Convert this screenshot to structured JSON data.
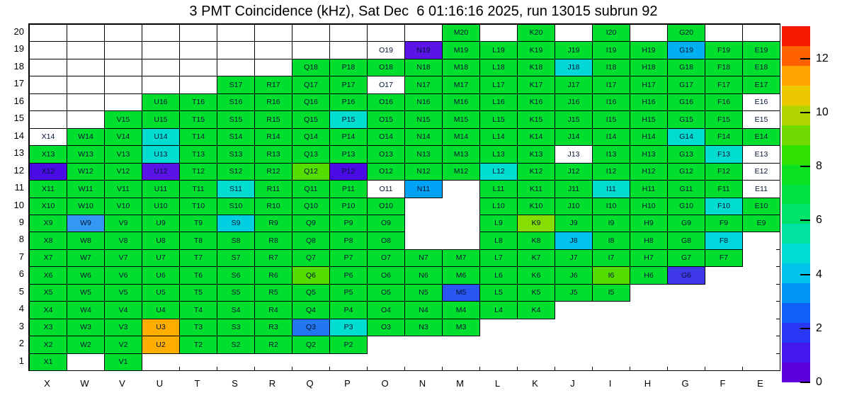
{
  "title": "3 PMT Coincidence (kHz), Sat Dec  6 01:16:16 2025, run 13015 subrun 92",
  "chart_data": {
    "type": "heatmap",
    "value_unit": "kHz",
    "columns": [
      "X",
      "W",
      "V",
      "U",
      "T",
      "S",
      "R",
      "Q",
      "P",
      "O",
      "N",
      "M",
      "L",
      "K",
      "J",
      "I",
      "H",
      "G",
      "F",
      "E"
    ],
    "rows_top_to_bottom": [
      20,
      19,
      18,
      17,
      16,
      15,
      14,
      13,
      12,
      11,
      10,
      9,
      8,
      7,
      6,
      5,
      4,
      3,
      2,
      1
    ],
    "grid": {
      "text_color": "#001433",
      "bordered_empty_rows_from": 15,
      "default": {
        "value": 6.5,
        "color": "#00df2e"
      },
      "row_cells": {
        "20": [
          "M",
          "K",
          "I",
          "G"
        ],
        "19": [
          "O",
          "N",
          "M",
          "L",
          "K",
          "J",
          "I",
          "H",
          "G",
          "F",
          "E"
        ],
        "18": [
          "Q",
          "P",
          "O",
          "N",
          "M",
          "L",
          "K",
          "J",
          "I",
          "H",
          "G",
          "F",
          "E"
        ],
        "17": [
          "S",
          "R",
          "Q",
          "P",
          "O",
          "N",
          "M",
          "L",
          "K",
          "J",
          "I",
          "H",
          "G",
          "F",
          "E"
        ],
        "16": [
          "U",
          "T",
          "S",
          "R",
          "Q",
          "P",
          "O",
          "N",
          "M",
          "L",
          "K",
          "J",
          "I",
          "H",
          "G",
          "F",
          "E"
        ],
        "15": [
          "V",
          "U",
          "T",
          "S",
          "R",
          "Q",
          "P",
          "O",
          "N",
          "M",
          "L",
          "K",
          "J",
          "I",
          "H",
          "G",
          "F",
          "E"
        ],
        "14": [
          "X",
          "W",
          "V",
          "U",
          "T",
          "S",
          "R",
          "Q",
          "P",
          "O",
          "N",
          "M",
          "L",
          "K",
          "J",
          "I",
          "H",
          "G",
          "F",
          "E"
        ],
        "13": [
          "X",
          "W",
          "V",
          "U",
          "T",
          "S",
          "R",
          "Q",
          "P",
          "O",
          "N",
          "M",
          "L",
          "K",
          "J",
          "I",
          "H",
          "G",
          "F",
          "E"
        ],
        "12": [
          "X",
          "W",
          "V",
          "U",
          "T",
          "S",
          "R",
          "Q",
          "P",
          "O",
          "N",
          "M",
          "L",
          "K",
          "J",
          "I",
          "H",
          "G",
          "F",
          "E"
        ],
        "11": [
          "X",
          "W",
          "V",
          "U",
          "T",
          "S",
          "R",
          "Q",
          "P",
          "O",
          "N",
          "L",
          "K",
          "J",
          "I",
          "H",
          "G",
          "F",
          "E"
        ],
        "10": [
          "X",
          "W",
          "V",
          "U",
          "T",
          "S",
          "R",
          "Q",
          "P",
          "O",
          "L",
          "K",
          "J",
          "I",
          "H",
          "G",
          "F",
          "E"
        ],
        "9": [
          "X",
          "W",
          "V",
          "U",
          "T",
          "S",
          "R",
          "Q",
          "P",
          "O",
          "L",
          "K",
          "J",
          "I",
          "H",
          "G",
          "F",
          "E"
        ],
        "8": [
          "X",
          "W",
          "V",
          "U",
          "T",
          "S",
          "R",
          "Q",
          "P",
          "O",
          "L",
          "K",
          "J",
          "I",
          "H",
          "G",
          "F"
        ],
        "7": [
          "X",
          "W",
          "V",
          "U",
          "T",
          "S",
          "R",
          "Q",
          "P",
          "O",
          "N",
          "M",
          "L",
          "K",
          "J",
          "I",
          "H",
          "G",
          "F"
        ],
        "6": [
          "X",
          "W",
          "V",
          "U",
          "T",
          "S",
          "R",
          "Q",
          "P",
          "O",
          "N",
          "M",
          "L",
          "K",
          "J",
          "I",
          "H",
          "G"
        ],
        "5": [
          "X",
          "W",
          "V",
          "U",
          "T",
          "S",
          "R",
          "Q",
          "P",
          "O",
          "N",
          "M",
          "L",
          "K",
          "J",
          "I"
        ],
        "4": [
          "X",
          "W",
          "V",
          "U",
          "T",
          "S",
          "R",
          "Q",
          "P",
          "O",
          "N",
          "M",
          "L",
          "K"
        ],
        "3": [
          "X",
          "W",
          "V",
          "U",
          "T",
          "S",
          "R",
          "Q",
          "P",
          "O",
          "N",
          "M"
        ],
        "2": [
          "X",
          "W",
          "V",
          "U",
          "T",
          "S",
          "R",
          "Q",
          "P"
        ],
        "1": [
          "X",
          "V"
        ]
      },
      "overrides": {
        "O19": {
          "value": 0,
          "color": "#ffffff"
        },
        "O17": {
          "value": 0,
          "color": "#ffffff"
        },
        "E16": {
          "value": 0,
          "color": "#ffffff"
        },
        "E15": {
          "value": 0,
          "color": "#ffffff"
        },
        "X14": {
          "value": 0,
          "color": "#ffffff"
        },
        "J13": {
          "value": 0,
          "color": "#ffffff"
        },
        "E13": {
          "value": 0,
          "color": "#ffffff"
        },
        "E12": {
          "value": 0,
          "color": "#ffffff"
        },
        "O11": {
          "value": 0,
          "color": "#ffffff"
        },
        "E11": {
          "value": 0,
          "color": "#ffffff"
        },
        "N19": {
          "value": 1.0,
          "color": "#5a14e6"
        },
        "G19": {
          "value": 3.8,
          "color": "#00b0f0"
        },
        "J18": {
          "value": 4.6,
          "color": "#00d8d8"
        },
        "P15": {
          "value": 4.6,
          "color": "#00ddd0"
        },
        "U14": {
          "value": 4.6,
          "color": "#00ddd0"
        },
        "G14": {
          "value": 4.6,
          "color": "#00ddd0"
        },
        "U13": {
          "value": 4.6,
          "color": "#00ddd0"
        },
        "F13": {
          "value": 4.6,
          "color": "#00ddd0"
        },
        "X12": {
          "value": 0.8,
          "color": "#4b0ce4"
        },
        "U12": {
          "value": 1.0,
          "color": "#5a14e6"
        },
        "Q12": {
          "value": 8.8,
          "color": "#55dd00"
        },
        "P12": {
          "value": 0.8,
          "color": "#4b0ce4"
        },
        "L12": {
          "value": 4.6,
          "color": "#00ddd0"
        },
        "S11": {
          "value": 4.6,
          "color": "#00ddd0"
        },
        "N11": {
          "value": 3.6,
          "color": "#00a2f5"
        },
        "I11": {
          "value": 4.6,
          "color": "#00ddd0"
        },
        "F10": {
          "value": 4.6,
          "color": "#00ddd0"
        },
        "W9": {
          "value": 3.4,
          "color": "#3399f5"
        },
        "S9": {
          "value": 4.4,
          "color": "#00cfe2"
        },
        "K9": {
          "value": 9.2,
          "color": "#88dd00"
        },
        "J8": {
          "value": 4.2,
          "color": "#00c4ee"
        },
        "F8": {
          "value": 4.4,
          "color": "#00d6dc"
        },
        "Q6": {
          "value": 8.8,
          "color": "#55dd00"
        },
        "I6": {
          "value": 8.8,
          "color": "#55dd00"
        },
        "G6": {
          "value": 1.6,
          "color": "#4038e8"
        },
        "M5": {
          "value": 2.4,
          "color": "#2b55f0"
        },
        "U3": {
          "value": 11.0,
          "color": "#ffae00"
        },
        "Q3": {
          "value": 2.8,
          "color": "#2277ee"
        },
        "P3": {
          "value": 4.5,
          "color": "#00ddd0"
        },
        "U2": {
          "value": 11.0,
          "color": "#ffae00"
        }
      }
    },
    "colorbar": {
      "min": 0,
      "max": 13.2,
      "ticks": [
        0,
        2,
        4,
        6,
        8,
        10,
        12
      ],
      "segments_bottom_to_top": [
        "#5c00dc",
        "#4418ec",
        "#2838f4",
        "#1060f8",
        "#0098f4",
        "#00c4ec",
        "#00dcd4",
        "#00e2a0",
        "#00e36a",
        "#00e340",
        "#0ae120",
        "#30e000",
        "#72da00",
        "#b4d400",
        "#ecc800",
        "#ffa400",
        "#ff6000",
        "#f51800"
      ]
    }
  }
}
